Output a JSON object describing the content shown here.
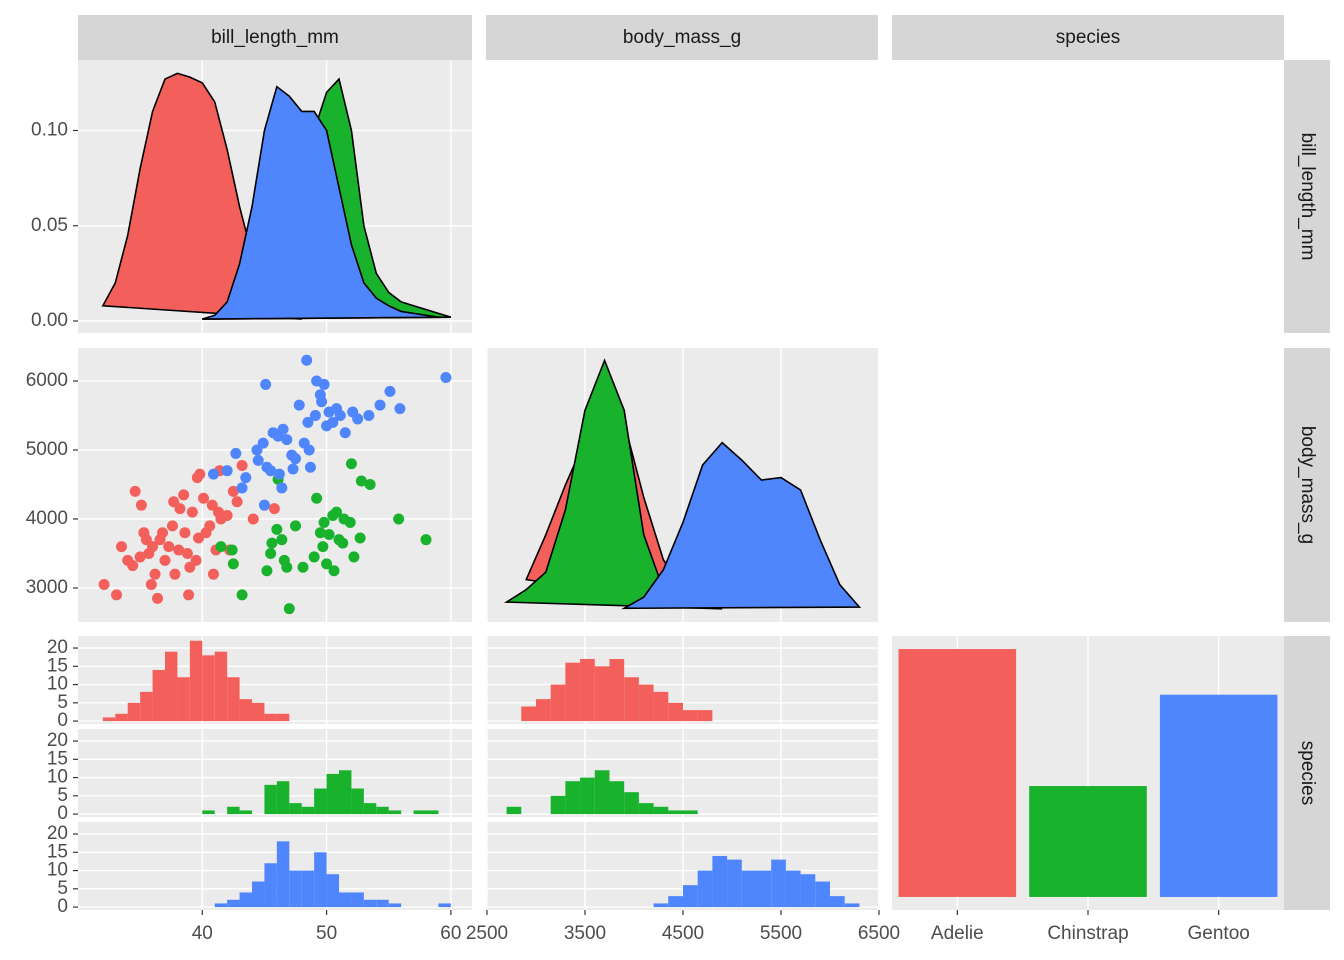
{
  "chart_data": {
    "type": "pairs",
    "variables": [
      "bill_length_mm",
      "body_mass_g",
      "species"
    ],
    "categories": [
      "Adelie",
      "Chinstrap",
      "Gentoo"
    ],
    "colors": [
      "#f3605b",
      "#19b22c",
      "#4f85fd"
    ],
    "x_axes": [
      {
        "xlim": [
          30.0,
          61.7
        ],
        "xticks": [
          40,
          50,
          60
        ]
      },
      {
        "xlim": [
          2490,
          6490
        ],
        "xticks": [
          2500,
          3500,
          4500,
          5500,
          6500
        ]
      }
    ],
    "y_axes": [
      {
        "ylim": [
          -0.0063,
          0.137
        ],
        "yticks": [
          {
            "value": 0,
            "label": "0.00"
          },
          {
            "value": 0.05,
            "label": "0.05"
          },
          {
            "value": 0.1,
            "label": "0.10"
          }
        ]
      },
      {
        "ylim": [
          2507,
          6478
        ],
        "yticks": [
          3000,
          4000,
          5000,
          6000
        ]
      },
      {
        "ylim": [
          -0.8,
          23.3
        ],
        "yticks": [
          0,
          5,
          10,
          15,
          20
        ]
      }
    ],
    "panels": {
      "bill_density": {
        "type": "density",
        "series": [
          {
            "x": [
              32,
              33,
              34,
              35,
              36,
              37,
              38,
              39,
              40,
              41,
              42,
              43,
              44,
              45,
              46,
              47,
              48
            ],
            "values": [
              0.008,
              0.02,
              0.045,
              0.08,
              0.11,
              0.127,
              0.13,
              0.128,
              0.125,
              0.115,
              0.09,
              0.06,
              0.035,
              0.02,
              0.01,
              0.004,
              0.001
            ]
          },
          {
            "x": [
              40,
              41,
              42,
              43,
              44,
              45,
              46,
              47,
              48,
              49,
              50,
              51,
              52,
              53,
              54,
              55,
              56,
              57,
              58,
              59,
              60
            ],
            "values": [
              0.001,
              0.002,
              0.006,
              0.012,
              0.025,
              0.04,
              0.06,
              0.078,
              0.09,
              0.1,
              0.12,
              0.127,
              0.1,
              0.05,
              0.025,
              0.015,
              0.01,
              0.008,
              0.006,
              0.004,
              0.002
            ]
          },
          {
            "x": [
              40,
              41,
              42,
              43,
              44,
              45,
              46,
              47,
              48,
              49,
              50,
              51,
              52,
              53,
              54,
              55,
              56,
              57,
              58,
              59,
              60
            ],
            "values": [
              0.001,
              0.003,
              0.01,
              0.03,
              0.06,
              0.1,
              0.123,
              0.118,
              0.11,
              0.11,
              0.1,
              0.07,
              0.04,
              0.02,
              0.012,
              0.008,
              0.005,
              0.004,
              0.003,
              0.002,
              0.002
            ]
          }
        ]
      },
      "mass_vs_bill": {
        "type": "scatter",
        "series": [
          {
            "x": [
              32.1,
              33.1,
              33.5,
              34,
              34.4,
              34.6,
              35,
              35.1,
              35.3,
              35.7,
              35.9,
              36.2,
              36.4,
              36.6,
              36.8,
              37,
              37.3,
              37.6,
              37.8,
              38.1,
              38.2,
              38.6,
              38.8,
              39,
              39.2,
              39.5,
              39.6,
              39.7,
              40.1,
              40.3,
              40.6,
              40.8,
              41.1,
              41.3,
              41.5,
              42,
              42.2,
              42.5,
              42.8,
              43.2,
              44.1,
              45.8,
              40.9,
              38.9,
              36,
              37.7,
              39.8,
              41.4,
              35.5,
              38.5
            ],
            "values": [
              3050,
              2900,
              3600,
              3400,
              3325,
              4400,
              3450,
              4200,
              3800,
              3500,
              3050,
              3200,
              2850,
              3700,
              3800,
              3400,
              3600,
              3900,
              3200,
              3550,
              4150,
              3800,
              3500,
              3300,
              4100,
              3400,
              4600,
              3725,
              4300,
              3800,
              3900,
              4200,
              3550,
              4100,
              4000,
              4050,
              3550,
              4400,
              4250,
              4775,
              4000,
              4150,
              3200,
              2900,
              3600,
              4250,
              4650,
              4700,
              3700,
              4350
            ]
          },
          {
            "x": [
              41.5,
              42.5,
              43.2,
              42.4,
              45.2,
              45.5,
              45.6,
              46,
              46.4,
              46.6,
              46.8,
              47,
              47.5,
              48.1,
              49,
              49.2,
              49.5,
              49.8,
              50,
              50.5,
              50.8,
              51,
              51.3,
              51.4,
              51.9,
              52,
              52.2,
              52.7,
              53.5,
              55.8,
              58,
              50.2,
              46.1,
              49.7,
              52.8,
              50.6
            ],
            "values": [
              3600,
              3350,
              2900,
              3550,
              3250,
              3500,
              3650,
              3850,
              3700,
              3400,
              3300,
              2700,
              3900,
              3300,
              3450,
              4300,
              3800,
              3950,
              3350,
              4050,
              4100,
              3700,
              3650,
              4000,
              3950,
              4800,
              3450,
              3725,
              4500,
              4000,
              3700,
              3775,
              4575,
              3600,
              4550,
              3250
            ]
          },
          {
            "x": [
              40.9,
              42,
              42.7,
              43.2,
              43.5,
              44.4,
              44.9,
              45.1,
              45.2,
              45.5,
              45.7,
              46.1,
              46.2,
              46.5,
              46.8,
              47.2,
              47.5,
              47.8,
              48.2,
              48.5,
              48.7,
              49.1,
              49.5,
              49.6,
              49.8,
              50,
              50.2,
              50.5,
              50.8,
              51.1,
              51.5,
              52.1,
              52.5,
              53.4,
              54.3,
              55.1,
              55.9,
              48.4,
              49.2,
              59.6,
              45,
              46.4,
              47.3,
              48.6,
              44.5
            ],
            "values": [
              4650,
              4700,
              4950,
              4450,
              4600,
              5000,
              5100,
              5950,
              4750,
              4700,
              5250,
              5200,
              4650,
              5300,
              5150,
              4925,
              4875,
              5650,
              5100,
              5400,
              4750,
              5500,
              5800,
              5700,
              5950,
              5350,
              5550,
              5400,
              5600,
              5500,
              5250,
              5550,
              5450,
              5500,
              5650,
              5850,
              5600,
              6300,
              6000,
              6050,
              4200,
              4450,
              4725,
              5000,
              4850
            ]
          }
        ]
      },
      "mass_density": {
        "type": "density",
        "ylim": [
          -5e-05,
          0.00105
        ],
        "series": [
          {
            "x": [
              2900,
              3100,
              3300,
              3500,
              3700,
              3900,
              4100,
              4300,
              4500,
              4700
            ],
            "values": [
              0.00012,
              0.0003,
              0.0005,
              0.00068,
              0.00078,
              0.00075,
              0.00045,
              0.0002,
              8e-05,
              2e-05
            ]
          },
          {
            "x": [
              2700,
              2900,
              3100,
              3300,
              3500,
              3700,
              3900,
              4100,
              4300,
              4500,
              4700,
              4900
            ],
            "values": [
              3e-05,
              8e-05,
              0.00015,
              0.0004,
              0.0008,
              0.001,
              0.0008,
              0.0003,
              8e-05,
              3e-05,
              1e-05,
              3e-06
            ]
          },
          {
            "x": [
              3900,
              4100,
              4300,
              4500,
              4700,
              4900,
              5100,
              5300,
              5500,
              5700,
              5900,
              6100,
              6300
            ],
            "values": [
              5e-06,
              5e-05,
              0.00016,
              0.00035,
              0.00058,
              0.00067,
              0.0006,
              0.00052,
              0.00053,
              0.00048,
              0.00028,
              0.0001,
              1e-05
            ]
          }
        ]
      },
      "bill_histogram": {
        "type": "histogram",
        "bins": [
          32,
          33,
          34,
          35,
          36,
          37,
          38,
          39,
          40,
          41,
          42,
          43,
          44,
          45,
          46,
          47,
          48,
          49,
          50,
          51,
          52,
          53,
          54,
          55,
          56,
          57,
          58,
          59,
          60
        ],
        "series": [
          {
            "values": [
              1,
              2,
              5,
              8,
              14,
              19,
              12,
              22,
              18,
              19,
              12,
              6,
              5,
              2,
              2,
              0,
              0,
              0,
              0,
              0,
              0,
              0,
              0,
              0,
              0,
              0,
              0,
              0
            ]
          },
          {
            "values": [
              0,
              0,
              0,
              0,
              0,
              0,
              0,
              0,
              1,
              0,
              2,
              1,
              0,
              8,
              9,
              3,
              2,
              7,
              11,
              12,
              7,
              3,
              2,
              1,
              0,
              1,
              1,
              0
            ]
          },
          {
            "values": [
              0,
              0,
              0,
              0,
              0,
              0,
              0,
              0,
              0,
              1,
              2,
              4,
              7,
              12,
              18,
              10,
              10,
              15,
              9,
              4,
              4,
              2,
              2,
              1,
              0,
              0,
              0,
              1
            ]
          }
        ]
      },
      "mass_histogram": {
        "type": "histogram",
        "bins": [
          2700,
          2850,
          3000,
          3150,
          3300,
          3450,
          3600,
          3750,
          3900,
          4050,
          4200,
          4350,
          4500,
          4650,
          4800,
          4950,
          5100,
          5250,
          5400,
          5550,
          5700,
          5850,
          6000,
          6150,
          6300
        ],
        "series": [
          {
            "values": [
              0,
              4,
              6,
              10,
              16,
              17,
              15,
              17,
              12,
              10,
              8,
              5,
              3,
              3,
              0,
              0,
              0,
              0,
              0,
              0,
              0,
              0,
              0,
              0
            ]
          },
          {
            "values": [
              2,
              0,
              0,
              5,
              9,
              10,
              12,
              9,
              6,
              3,
              2,
              1,
              1,
              0,
              0,
              0,
              0,
              0,
              0,
              0,
              0,
              0,
              0,
              0
            ]
          },
          {
            "values": [
              0,
              0,
              0,
              0,
              0,
              0,
              0,
              0,
              0,
              0,
              1,
              3,
              6,
              10,
              14,
              13,
              10,
              10,
              13,
              10,
              9,
              7,
              3,
              1
            ]
          }
        ]
      },
      "species_bar": {
        "type": "bar",
        "values": [
          152,
          68,
          124
        ],
        "ylim": [
          -8,
          160
        ]
      }
    }
  }
}
